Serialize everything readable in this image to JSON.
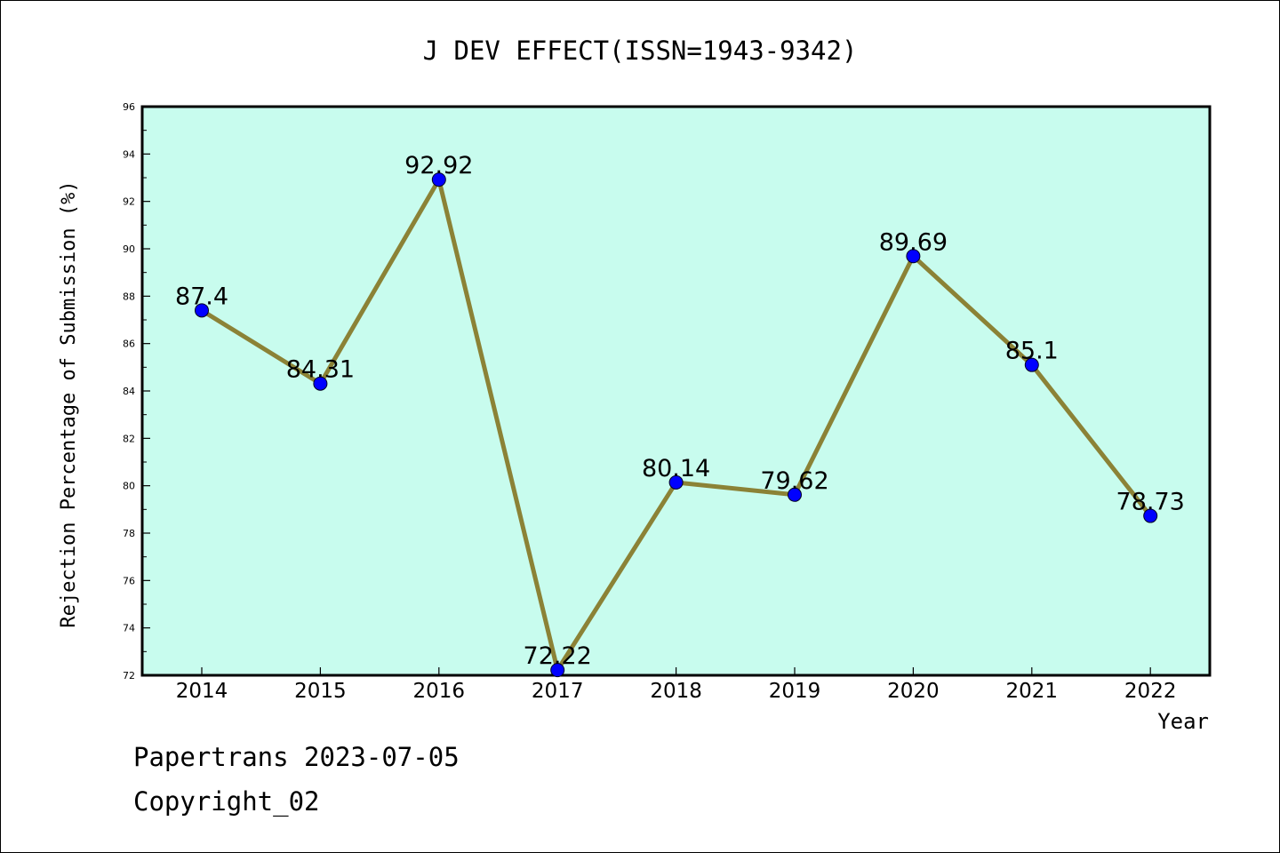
{
  "footer": {
    "line1": "Papertrans 2023-07-05",
    "line2": "Copyright_02"
  },
  "chart_data": {
    "type": "line",
    "title": "J DEV EFFECT(ISSN=1943-9342)",
    "xlabel": "Year",
    "ylabel": "Rejection Percentage of Submission (%)",
    "x": [
      "2014",
      "2015",
      "2016",
      "2017",
      "2018",
      "2019",
      "2020",
      "2021",
      "2022"
    ],
    "series": [
      {
        "values": [
          87.4,
          84.31,
          92.92,
          72.22,
          80.14,
          79.62,
          89.69,
          85.1,
          78.73
        ],
        "labels": [
          "87.4",
          "84.31",
          "92.92",
          "72.22",
          "80.14",
          "79.62",
          "89.69",
          "85.1",
          "78.73"
        ]
      }
    ],
    "ylim": [
      72,
      96
    ],
    "yticks": [
      "72",
      "74",
      "76",
      "78",
      "80",
      "82",
      "84",
      "86",
      "88",
      "90",
      "92",
      "94",
      "96"
    ],
    "grid": false,
    "colors": {
      "plot_background": "#c8fcee",
      "line": "#8b8236",
      "marker": "#0000ff"
    }
  }
}
